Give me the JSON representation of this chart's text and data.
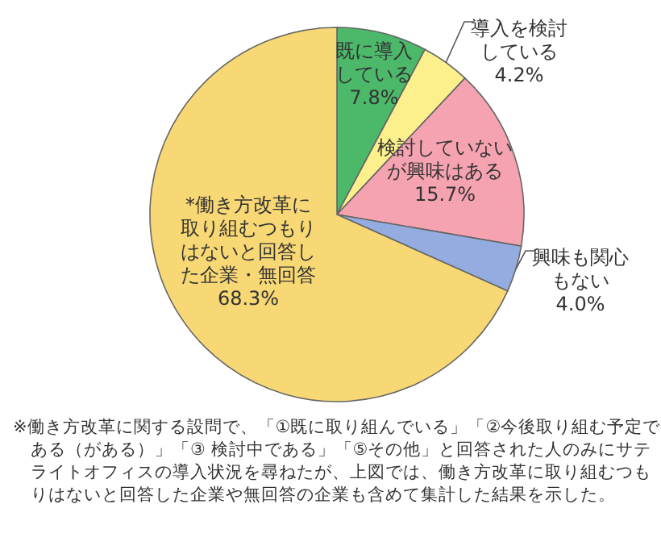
{
  "chart_data": {
    "type": "pie",
    "categories": [
      "既に導入している",
      "導入を検討している",
      "検討していないが興味はある",
      "興味も関心もない",
      "*働き方改革に取り組むつもりはないと回答した企業・無回答"
    ],
    "values": [
      7.8,
      4.2,
      15.7,
      4.0,
      68.3
    ],
    "colors": [
      "#4cb86a",
      "#fbf08c",
      "#f5a3b0",
      "#94acdf",
      "#f8d874"
    ],
    "value_labels": [
      "7.8%",
      "4.2%",
      "15.7%",
      "4.0%",
      "68.3%"
    ],
    "annotations": [
      "※働き方改革に関する設問で、「①既に取り組んでいる」「②今後取り組む予定である（がある）」「③ 検討中である」「⑤その他」と回答された人のみにサテライトオフィスの導入状況を尋ねたが、上図では、働き方改革に取り組むつもりはないと回答した企業や無回答の企業も含めて集計した結果を示した。"
    ]
  }
}
